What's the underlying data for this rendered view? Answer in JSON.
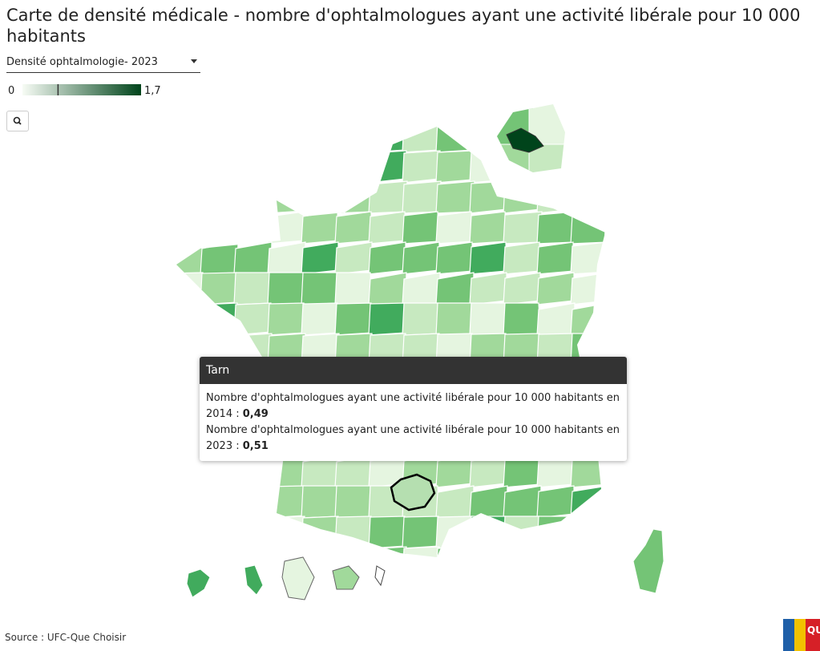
{
  "header": {
    "title": "Carte de densité médicale - nombre d'ophtalmologues ayant une activité libérale pour 10 000 habitants"
  },
  "selector": {
    "label": "Densité ophtalmologie- 2023"
  },
  "legend": {
    "min": 0,
    "max": {
      "value": 1.7,
      "label": "1,7"
    },
    "colors": [
      "#f7fcf5",
      "#00441b"
    ]
  },
  "tooltip": {
    "title": "Tarn",
    "lines": [
      {
        "text": "Nombre d'ophtalmologues ayant une activité libérale pour 10 000 habitants en 2014 :",
        "value": {
          "value": 0.49,
          "label": "0,49"
        }
      },
      {
        "text": "Nombre d'ophtalmologues ayant une activité libérale pour 10 000 habitants en 2023 :",
        "value": {
          "value": 0.51,
          "label": "0,51"
        }
      }
    ]
  },
  "source": "Source : UFC-Que Choisir",
  "logo": "QUE"
}
